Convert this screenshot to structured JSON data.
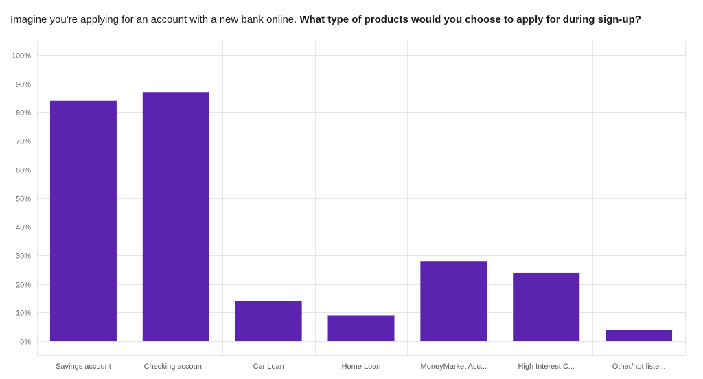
{
  "question": {
    "prefix": "Imagine you're applying for an account with a new bank online.",
    "emphasis": "What type of products would you choose to apply for during sign-up?"
  },
  "colors": {
    "bar": "#5b24b0",
    "grid": "#e6e6e6",
    "axis_text": "#6b6b6b"
  },
  "chart_data": {
    "type": "bar",
    "title": "",
    "xlabel": "",
    "ylabel": "",
    "grid": true,
    "ylim": [
      0,
      100
    ],
    "y_ticks": [
      "0%",
      "10%",
      "20%",
      "30%",
      "40%",
      "50%",
      "60%",
      "70%",
      "80%",
      "90%",
      "100%"
    ],
    "categories": [
      "Savings account",
      "Checking accoun...",
      "Car Loan",
      "Home Loan",
      "MoneyMarket Acc...",
      "High Interest C...",
      "Other/not liste..."
    ],
    "values": [
      84,
      87,
      14,
      9,
      28,
      24,
      4
    ]
  }
}
